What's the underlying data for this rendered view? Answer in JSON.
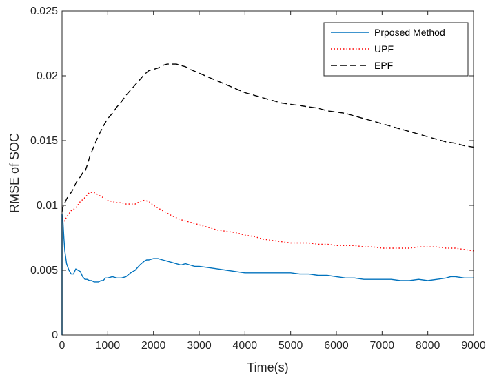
{
  "chart_data": {
    "type": "line",
    "title": "",
    "xlabel": "Time(s)",
    "ylabel": "RMSE of SOC",
    "xlim": [
      0,
      9000
    ],
    "ylim": [
      0,
      0.025
    ],
    "xticks": [
      0,
      1000,
      2000,
      3000,
      4000,
      5000,
      6000,
      7000,
      8000,
      9000
    ],
    "xtick_labels": [
      "0",
      "1000",
      "2000",
      "3000",
      "4000",
      "5000",
      "6000",
      "7000",
      "8000",
      "9000"
    ],
    "yticks": [
      0,
      0.005,
      0.01,
      0.015,
      0.02,
      0.025
    ],
    "ytick_labels": [
      "0",
      "0.005",
      "0.01",
      "0.015",
      "0.02",
      "0.025"
    ],
    "grid": false,
    "legend_position": "top-right",
    "series": [
      {
        "name": "Prposed Method",
        "color": "#0072BD",
        "style": "solid",
        "x": [
          0,
          20,
          40,
          60,
          100,
          150,
          200,
          250,
          300,
          350,
          400,
          450,
          500,
          550,
          600,
          650,
          700,
          750,
          800,
          850,
          900,
          950,
          1000,
          1100,
          1200,
          1300,
          1400,
          1500,
          1550,
          1600,
          1700,
          1800,
          1850,
          1900,
          2000,
          2100,
          2200,
          2300,
          2400,
          2500,
          2600,
          2700,
          2800,
          2900,
          3000,
          3200,
          3400,
          3600,
          3800,
          4000,
          4200,
          4400,
          4600,
          4800,
          5000,
          5200,
          5400,
          5600,
          5800,
          6000,
          6200,
          6400,
          6600,
          6800,
          7000,
          7200,
          7400,
          7600,
          7800,
          8000,
          8200,
          8400,
          8500,
          8600,
          8800,
          9000
        ],
        "y": [
          0.0093,
          0.0088,
          0.0075,
          0.0065,
          0.0055,
          0.005,
          0.0047,
          0.0047,
          0.0051,
          0.005,
          0.0049,
          0.0045,
          0.0043,
          0.0043,
          0.0042,
          0.0042,
          0.0041,
          0.0041,
          0.0041,
          0.0042,
          0.0042,
          0.0044,
          0.0044,
          0.0045,
          0.0044,
          0.0044,
          0.0045,
          0.0048,
          0.0049,
          0.005,
          0.0054,
          0.0057,
          0.0058,
          0.0058,
          0.0059,
          0.0059,
          0.0058,
          0.0057,
          0.0056,
          0.0055,
          0.0054,
          0.0055,
          0.0054,
          0.0053,
          0.0053,
          0.0052,
          0.0051,
          0.005,
          0.0049,
          0.0048,
          0.0048,
          0.0048,
          0.0048,
          0.0048,
          0.0048,
          0.0047,
          0.0047,
          0.0046,
          0.0046,
          0.0045,
          0.0044,
          0.0044,
          0.0043,
          0.0043,
          0.0043,
          0.0043,
          0.0042,
          0.0042,
          0.0043,
          0.0042,
          0.0043,
          0.0044,
          0.0045,
          0.0045,
          0.0044,
          0.0044
        ]
      },
      {
        "name": "UPF",
        "color": "#FF0000",
        "style": "dotted",
        "x": [
          0,
          50,
          100,
          200,
          300,
          400,
          500,
          600,
          700,
          800,
          900,
          1000,
          1100,
          1200,
          1300,
          1400,
          1500,
          1600,
          1700,
          1800,
          1900,
          2000,
          2200,
          2400,
          2600,
          2800,
          3000,
          3200,
          3400,
          3600,
          3800,
          4000,
          4200,
          4400,
          4600,
          4800,
          5000,
          5200,
          5400,
          5600,
          5800,
          6000,
          6200,
          6400,
          6600,
          6800,
          7000,
          7200,
          7400,
          7600,
          7800,
          8000,
          8200,
          8400,
          8600,
          8800,
          9000
        ],
        "y": [
          0.009,
          0.0088,
          0.0091,
          0.0096,
          0.0098,
          0.0103,
          0.0106,
          0.011,
          0.011,
          0.0108,
          0.0106,
          0.0104,
          0.0103,
          0.0102,
          0.0102,
          0.0101,
          0.0101,
          0.0101,
          0.0103,
          0.0104,
          0.0103,
          0.01,
          0.0096,
          0.0092,
          0.0089,
          0.0087,
          0.0085,
          0.0083,
          0.0081,
          0.008,
          0.0079,
          0.0077,
          0.0076,
          0.0074,
          0.0073,
          0.0072,
          0.0071,
          0.0071,
          0.0071,
          0.007,
          0.007,
          0.0069,
          0.0069,
          0.0069,
          0.0068,
          0.0068,
          0.0067,
          0.0067,
          0.0067,
          0.0067,
          0.0068,
          0.0068,
          0.0068,
          0.0067,
          0.0067,
          0.0066,
          0.0065
        ]
      },
      {
        "name": "EPF",
        "color": "#000000",
        "style": "dashed",
        "x": [
          0,
          20,
          50,
          100,
          150,
          200,
          250,
          300,
          350,
          400,
          450,
          500,
          550,
          600,
          700,
          800,
          900,
          1000,
          1100,
          1200,
          1300,
          1400,
          1500,
          1600,
          1700,
          1800,
          1900,
          2000,
          2100,
          2200,
          2300,
          2400,
          2500,
          2600,
          2700,
          2800,
          3000,
          3200,
          3400,
          3600,
          3800,
          4000,
          4200,
          4400,
          4600,
          4800,
          5000,
          5200,
          5400,
          5600,
          5800,
          6000,
          6200,
          6400,
          6600,
          6800,
          7000,
          7200,
          7400,
          7600,
          7800,
          8000,
          8200,
          8400,
          8600,
          8800,
          9000
        ],
        "y": [
          0.0095,
          0.0099,
          0.0101,
          0.0105,
          0.0108,
          0.011,
          0.0113,
          0.0117,
          0.012,
          0.0122,
          0.0125,
          0.0126,
          0.0131,
          0.0137,
          0.0146,
          0.0154,
          0.0161,
          0.0167,
          0.0171,
          0.0176,
          0.018,
          0.0185,
          0.0189,
          0.0193,
          0.0197,
          0.0201,
          0.0204,
          0.0205,
          0.0206,
          0.0208,
          0.0209,
          0.0209,
          0.0209,
          0.0208,
          0.0207,
          0.0205,
          0.0202,
          0.0199,
          0.0196,
          0.0193,
          0.019,
          0.0187,
          0.0185,
          0.0183,
          0.0181,
          0.0179,
          0.0178,
          0.0177,
          0.0176,
          0.0175,
          0.0173,
          0.0172,
          0.0171,
          0.0169,
          0.0167,
          0.0165,
          0.0163,
          0.0161,
          0.0159,
          0.0157,
          0.0155,
          0.0153,
          0.0151,
          0.0149,
          0.0148,
          0.0146,
          0.0145
        ]
      }
    ]
  }
}
